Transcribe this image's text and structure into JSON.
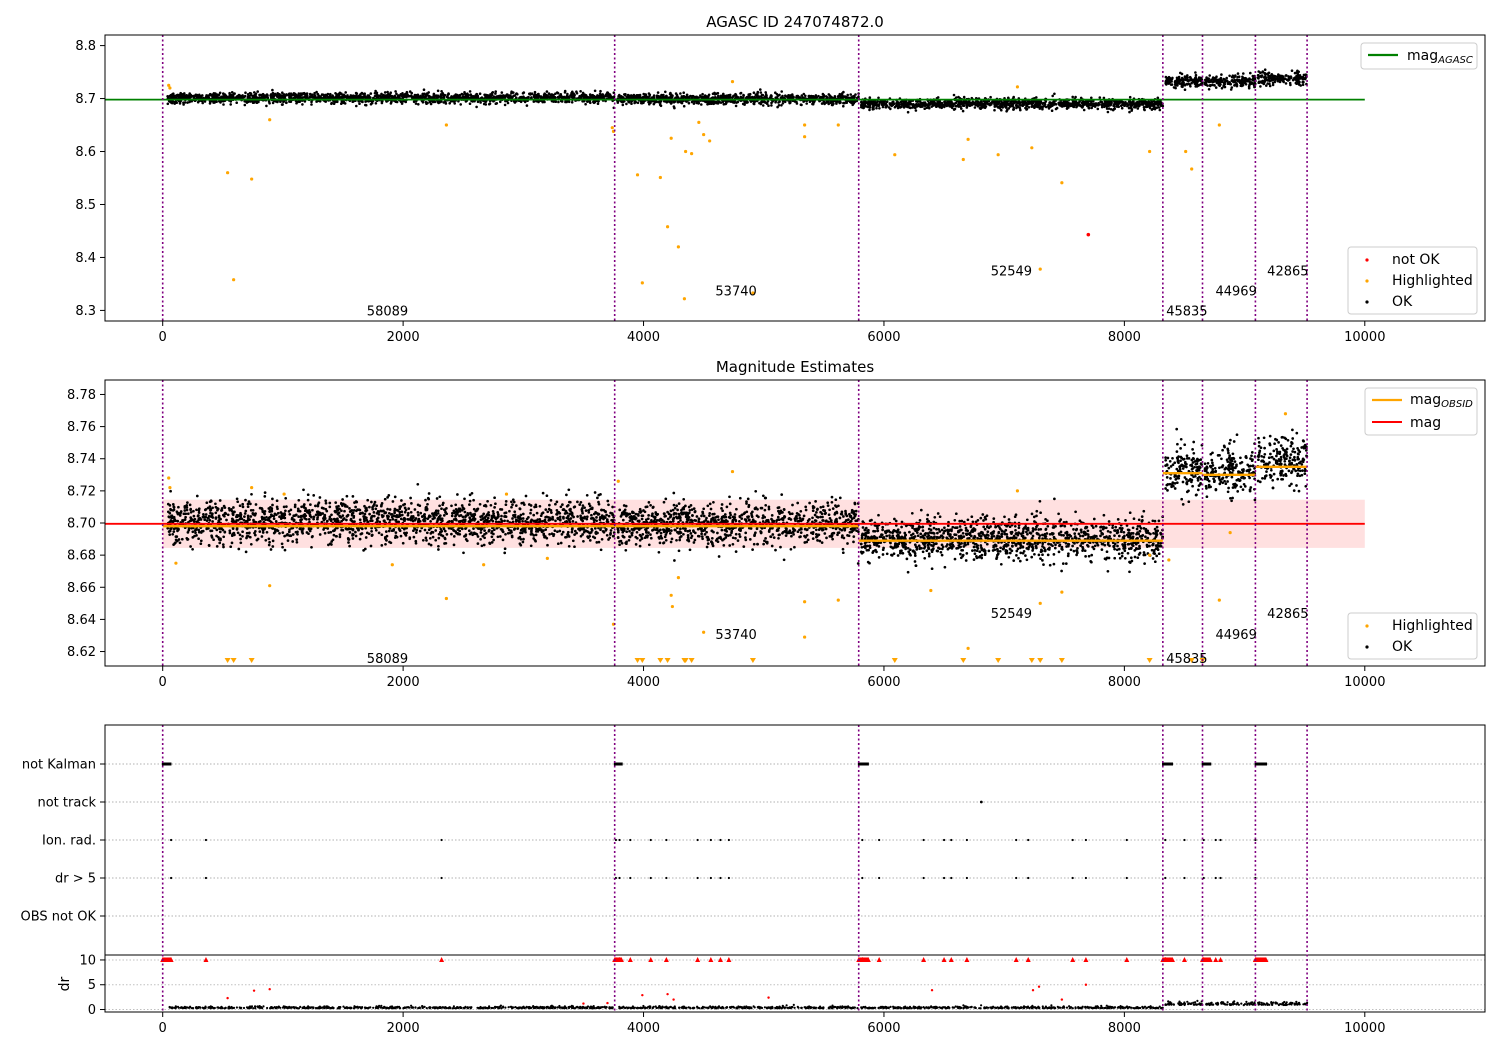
{
  "chart_data": [
    {
      "type": "scatter",
      "title": "AGASC ID 247074872.0",
      "xlim": [
        -480,
        11000
      ],
      "ylim": [
        8.28,
        8.82
      ],
      "xticks": [
        0,
        2000,
        4000,
        6000,
        8000,
        10000
      ],
      "yticks": [
        8.3,
        8.4,
        8.5,
        8.6,
        8.7,
        8.8
      ],
      "grid": false,
      "legend_top_right": {
        "mag_base": "mag",
        "mag_subscript": "AGASC"
      },
      "legend_bottom_right": [
        "not OK",
        "Highlighted",
        "OK"
      ],
      "mag_agasc": 8.698,
      "obsid_boundaries": [
        0,
        3760,
        5790,
        8320,
        8650,
        9090,
        9520
      ],
      "obsid_labels": [
        {
          "text": "58089",
          "x": 1870,
          "y": 8.3
        },
        {
          "text": "53740",
          "x": 4770,
          "y": 8.338
        },
        {
          "text": "52549",
          "x": 7060,
          "y": 8.375
        },
        {
          "text": "45835",
          "x": 8520,
          "y": 8.3
        },
        {
          "text": "44969",
          "x": 8930,
          "y": 8.338
        },
        {
          "text": "42865",
          "x": 9360,
          "y": 8.375
        }
      ],
      "ok_segments": [
        {
          "x0": 40,
          "x1": 3760,
          "mean": 8.701,
          "spread": 0.012
        },
        {
          "x0": 3780,
          "x1": 5790,
          "mean": 8.699,
          "spread": 0.012
        },
        {
          "x0": 5810,
          "x1": 8320,
          "mean": 8.69,
          "spread": 0.012
        },
        {
          "x0": 8340,
          "x1": 8650,
          "mean": 8.733,
          "spread": 0.014
        },
        {
          "x0": 8670,
          "x1": 9090,
          "mean": 8.732,
          "spread": 0.014
        },
        {
          "x0": 9110,
          "x1": 9520,
          "mean": 8.738,
          "spread": 0.014
        }
      ],
      "not_ok_points": [
        [
          7700,
          8.443
        ]
      ],
      "highlighted_points": [
        [
          50,
          8.725
        ],
        [
          60,
          8.72
        ],
        [
          540,
          8.56
        ],
        [
          590,
          8.358
        ],
        [
          740,
          8.548
        ],
        [
          890,
          8.66
        ],
        [
          2360,
          8.65
        ],
        [
          3750,
          8.638
        ],
        [
          3740,
          8.645
        ],
        [
          3950,
          8.556
        ],
        [
          3990,
          8.352
        ],
        [
          4140,
          8.551
        ],
        [
          4200,
          8.458
        ],
        [
          4230,
          8.625
        ],
        [
          4290,
          8.42
        ],
        [
          4340,
          8.322
        ],
        [
          4350,
          8.6
        ],
        [
          4400,
          8.596
        ],
        [
          4460,
          8.655
        ],
        [
          4500,
          8.632
        ],
        [
          4550,
          8.62
        ],
        [
          4910,
          8.333
        ],
        [
          5340,
          8.65
        ],
        [
          5340,
          8.628
        ],
        [
          5620,
          8.65
        ],
        [
          6090,
          8.594
        ],
        [
          6660,
          8.585
        ],
        [
          6700,
          8.623
        ],
        [
          6950,
          8.594
        ],
        [
          7230,
          8.607
        ],
        [
          7300,
          8.378
        ],
        [
          7480,
          8.541
        ],
        [
          8210,
          8.6
        ],
        [
          8510,
          8.6
        ],
        [
          8560,
          8.567
        ],
        [
          8790,
          8.65
        ],
        [
          4740,
          8.732
        ],
        [
          7110,
          8.722
        ]
      ]
    },
    {
      "type": "scatter",
      "title": "Magnitude Estimates",
      "xlim": [
        -480,
        11000
      ],
      "ylim": [
        8.611,
        8.789
      ],
      "xticks": [
        0,
        2000,
        4000,
        6000,
        8000,
        10000
      ],
      "yticks": [
        8.62,
        8.64,
        8.66,
        8.68,
        8.7,
        8.72,
        8.74,
        8.76,
        8.78
      ],
      "grid": false,
      "legend_top_right": {
        "mag_obsid_base": "mag",
        "mag_obsid_subscript": "OBSID",
        "mag": "mag"
      },
      "legend_bottom_right": [
        "Highlighted",
        "OK"
      ],
      "mag": 8.6995,
      "mag_band": [
        8.6845,
        8.7145
      ],
      "mag_obsid": [
        {
          "x0": 0,
          "x1": 3760,
          "y": 8.698
        },
        {
          "x0": 3760,
          "x1": 5790,
          "y": 8.698
        },
        {
          "x0": 5790,
          "x1": 8320,
          "y": 8.689
        },
        {
          "x0": 8320,
          "x1": 8650,
          "y": 8.731
        },
        {
          "x0": 8650,
          "x1": 9090,
          "y": 8.73
        },
        {
          "x0": 9090,
          "x1": 9520,
          "y": 8.735
        }
      ],
      "obsid_labels": [
        {
          "text": "58089",
          "x": 1870,
          "y": 8.616
        },
        {
          "text": "53740",
          "x": 4770,
          "y": 8.631
        },
        {
          "text": "52549",
          "x": 7060,
          "y": 8.644
        },
        {
          "text": "45835",
          "x": 8520,
          "y": 8.616
        },
        {
          "text": "44969",
          "x": 8930,
          "y": 8.631
        },
        {
          "text": "42865",
          "x": 9360,
          "y": 8.644
        }
      ],
      "highlighted_points": [
        [
          50,
          8.728
        ],
        [
          60,
          8.722
        ],
        [
          110,
          8.675
        ],
        [
          270,
          8.698
        ],
        [
          740,
          8.722
        ],
        [
          890,
          8.661
        ],
        [
          1010,
          8.718
        ],
        [
          1910,
          8.674
        ],
        [
          2360,
          8.653
        ],
        [
          2670,
          8.674
        ],
        [
          2860,
          8.718
        ],
        [
          3200,
          8.678
        ],
        [
          3750,
          8.637
        ],
        [
          3790,
          8.726
        ],
        [
          4230,
          8.655
        ],
        [
          4240,
          8.648
        ],
        [
          4290,
          8.666
        ],
        [
          4500,
          8.632
        ],
        [
          4740,
          8.732
        ],
        [
          5340,
          8.651
        ],
        [
          5340,
          8.629
        ],
        [
          5620,
          8.652
        ],
        [
          6390,
          8.658
        ],
        [
          6700,
          8.622
        ],
        [
          7110,
          8.72
        ],
        [
          7300,
          8.65
        ],
        [
          7480,
          8.657
        ],
        [
          8210,
          8.68
        ],
        [
          8370,
          8.677
        ],
        [
          8790,
          8.652
        ],
        [
          8880,
          8.694
        ],
        [
          9340,
          8.768
        ]
      ],
      "clipped_low_x": [
        540,
        590,
        740,
        3950,
        3990,
        4140,
        4200,
        4340,
        4350,
        4400,
        4910,
        6090,
        6660,
        6950,
        7230,
        7300,
        7480,
        8210,
        8560,
        8650
      ]
    },
    {
      "type": "scatter",
      "title": "",
      "xlim": [
        -480,
        11000
      ],
      "xticks": [
        0,
        2000,
        4000,
        6000,
        8000,
        10000
      ],
      "categories": [
        "not Kalman",
        "not track",
        "Ion. rad.",
        "dr > 5",
        "OBS not OK"
      ],
      "dr_ylabel": "dr",
      "dr_ylim": [
        -0.5,
        11
      ],
      "dr_yticks": [
        0,
        5,
        10
      ],
      "not_kalman_ranges": [
        [
          0,
          70
        ],
        [
          3760,
          3820
        ],
        [
          5790,
          5870
        ],
        [
          8320,
          8400
        ],
        [
          8650,
          8720
        ],
        [
          9090,
          9180
        ]
      ],
      "not_track_x": [
        6810
      ],
      "ion_rad_x": [
        70,
        360,
        2320,
        3770,
        3800,
        3890,
        4060,
        4190,
        4450,
        4560,
        4640,
        4710,
        5820,
        5960,
        6330,
        6500,
        6560,
        6690,
        7100,
        7200,
        7570,
        7680,
        8020,
        8340,
        8500,
        8660,
        8760,
        8800,
        9090
      ],
      "dr5_x": [
        70,
        360,
        2320,
        3770,
        3800,
        3890,
        4060,
        4190,
        4450,
        4560,
        4640,
        4710,
        5820,
        5960,
        6330,
        6500,
        6560,
        6690,
        7100,
        7200,
        7570,
        7680,
        8020,
        8340,
        8500,
        8660,
        8760,
        8800,
        9090
      ],
      "dr_outliers": [
        [
          760,
          3.8
        ],
        [
          890,
          4.1
        ],
        [
          540,
          2.3
        ],
        [
          3990,
          2.9
        ],
        [
          4200,
          3.1
        ],
        [
          4250,
          2.0
        ],
        [
          5040,
          2.4
        ],
        [
          6400,
          3.9
        ],
        [
          7240,
          3.9
        ],
        [
          7290,
          4.6
        ],
        [
          7680,
          5.0
        ],
        [
          7480,
          2.0
        ],
        [
          3500,
          1.2
        ],
        [
          3700,
          1.3
        ]
      ]
    }
  ]
}
